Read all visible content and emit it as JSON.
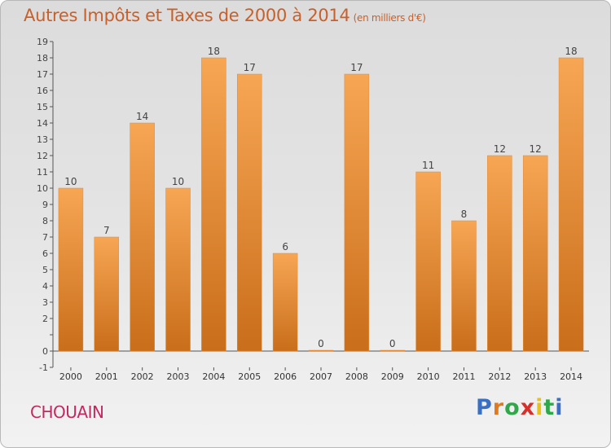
{
  "title": "Autres Impôts et Taxes de 2000 à 2014",
  "title_unit": "(en milliers d'€)",
  "commune": "CHOUAIN",
  "logo": {
    "letters": [
      "P",
      "r",
      "o",
      "x",
      "i",
      "t",
      "i"
    ],
    "colors": [
      "#3a6fc4",
      "#e07a1f",
      "#2fa84a",
      "#d6302b",
      "#e8c21a",
      "#2fa84a",
      "#3a6fc4"
    ]
  },
  "colors": {
    "bar_top": "#f7a654",
    "bar_bottom": "#c96e1a",
    "title": "#c8602a",
    "commune": "#c02a60"
  },
  "chart_data": {
    "type": "bar",
    "title": "Autres Impôts et Taxes de 2000 à 2014",
    "ylabel": "",
    "xlabel": "",
    "categories": [
      "2000",
      "2001",
      "2002",
      "2003",
      "2004",
      "2005",
      "2006",
      "2007",
      "2008",
      "2009",
      "2010",
      "2011",
      "2012",
      "2013",
      "2014"
    ],
    "values": [
      10,
      7,
      14,
      10,
      18,
      17,
      6,
      0,
      17,
      0,
      11,
      8,
      12,
      12,
      18
    ],
    "value_labels": [
      "10",
      "7",
      "14",
      "10",
      "18",
      "17",
      "6",
      "0",
      "17",
      "0",
      "11",
      "8",
      "12",
      "12",
      "18"
    ],
    "ylim": [
      -1,
      19
    ],
    "yticks": [
      {
        "value": -1,
        "label": "-1"
      },
      {
        "value": 0,
        "label": "0"
      },
      {
        "value": 1,
        "label": ""
      },
      {
        "value": 2,
        "label": "2"
      },
      {
        "value": 3,
        "label": "3"
      },
      {
        "value": 4,
        "label": "4"
      },
      {
        "value": 5,
        "label": "5"
      },
      {
        "value": 6,
        "label": "6"
      },
      {
        "value": 7,
        "label": "7"
      },
      {
        "value": 8,
        "label": "8"
      },
      {
        "value": 9,
        "label": "9"
      },
      {
        "value": 10,
        "label": "10"
      },
      {
        "value": 11,
        "label": "11"
      },
      {
        "value": 12,
        "label": "12"
      },
      {
        "value": 13,
        "label": "13"
      },
      {
        "value": 14,
        "label": "14"
      },
      {
        "value": 15,
        "label": "15"
      },
      {
        "value": 16,
        "label": "16"
      },
      {
        "value": 17,
        "label": "17"
      },
      {
        "value": 18,
        "label": "18"
      },
      {
        "value": 19,
        "label": "19"
      }
    ],
    "grid": false,
    "legend": "none"
  }
}
